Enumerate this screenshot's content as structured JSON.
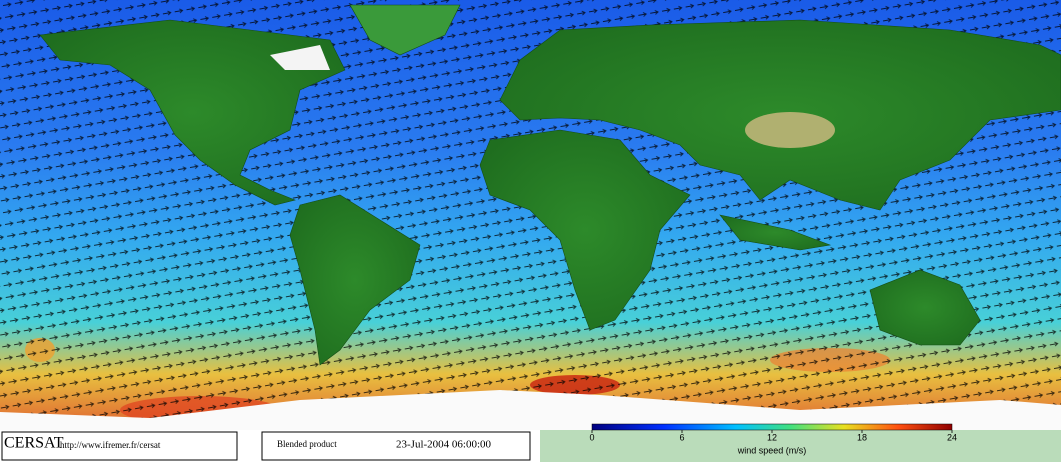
{
  "footer": {
    "logo": "CERSAT",
    "url": "http://www.ifremer.fr/cersat",
    "product": "Blended product",
    "datetime": "23-Jul-2004 06:00:00"
  },
  "colorbar": {
    "label": "wind speed (m/s)",
    "lim": [
      0,
      24
    ],
    "ticks": [
      0,
      6,
      12,
      18,
      24
    ]
  }
}
